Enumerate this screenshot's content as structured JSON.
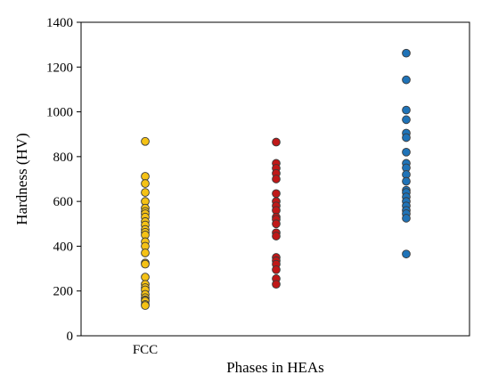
{
  "chart_data": {
    "type": "scatter",
    "title": "",
    "xlabel": "Phases in HEAs",
    "ylabel": "Hardness (HV)",
    "ylim": [
      0,
      1400
    ],
    "yticks": [
      0,
      200,
      400,
      600,
      800,
      1000,
      1200,
      1400
    ],
    "categories": [
      "FCC",
      "",
      ""
    ],
    "grid": false,
    "legend": "none",
    "series": [
      {
        "category_index": 0,
        "color": "#f5c215",
        "values": [
          868,
          712,
          680,
          640,
          600,
          570,
          555,
          545,
          530,
          510,
          495,
          475,
          462,
          450,
          420,
          400,
          370,
          325,
          320,
          262,
          230,
          215,
          205,
          185,
          170,
          160,
          155,
          140,
          135
        ]
      },
      {
        "category_index": 1,
        "color": "#c01818",
        "values": [
          865,
          770,
          748,
          725,
          700,
          635,
          600,
          580,
          560,
          530,
          520,
          500,
          460,
          445,
          350,
          335,
          320,
          295,
          255,
          230
        ]
      },
      {
        "category_index": 2,
        "color": "#1f73b8",
        "values": [
          1262,
          1143,
          1008,
          965,
          905,
          885,
          820,
          770,
          750,
          720,
          690,
          650,
          640,
          620,
          600,
          580,
          560,
          545,
          525,
          365
        ]
      }
    ]
  }
}
